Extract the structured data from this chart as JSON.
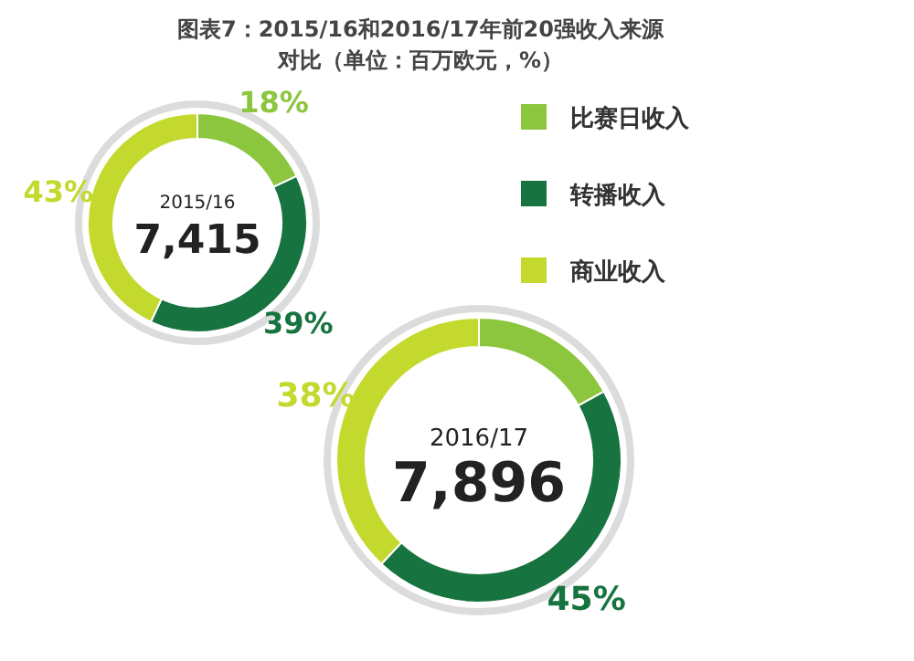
{
  "chart_data": [
    {
      "type": "donut",
      "title": "图表7：2015/16和2016/17年前20强收入来源",
      "subtitle": "对比（单位：百万欧元，%）",
      "categories": [
        "比赛日收入",
        "转播收入",
        "商业收入"
      ],
      "values": [
        18,
        39,
        43
      ],
      "colors": [
        "#8cc63e",
        "#17733f",
        "#c4d92e"
      ],
      "value_labels": [
        "18%",
        "39%",
        "43%"
      ],
      "annotations": [
        "2015/16",
        "7,415"
      ],
      "legend": "right"
    },
    {
      "type": "donut",
      "categories": [
        null,
        null,
        null
      ],
      "values": [
        17,
        45,
        38
      ],
      "colors": [
        "#8cc63e",
        "#17733f",
        "#c4d92e"
      ],
      "value_labels": [
        null,
        "45%",
        "38%"
      ],
      "annotations": [
        "2016/17",
        "7,896"
      ]
    }
  ]
}
